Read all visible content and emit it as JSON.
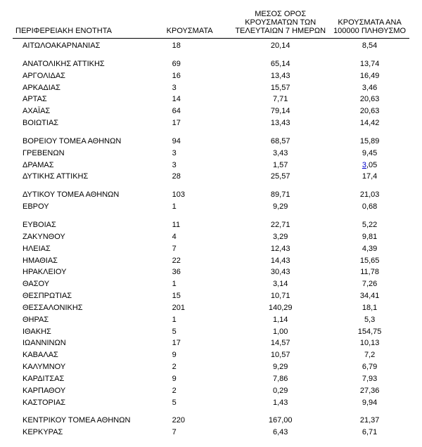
{
  "columns": {
    "region": "ΠΕΡΙΦΕΡΕΙΑΚΗ ΕΝΟΤΗΤΑ",
    "cases": "ΚΡΟΥΣΜΑΤΑ",
    "avg": "ΜΕΣΟΣ ΟΡΟΣ ΚΡΟΥΣΜΑΤΩΝ ΤΩΝ ΤΕΛΕΥΤΑΙΩΝ 7 ΗΜΕΡΩΝ",
    "per100k": "ΚΡΟΥΣΜΑΤΑ ΑΝΑ 100000 ΠΛΗΘΥΣΜΟ"
  },
  "rows": [
    {
      "region": "ΑΙΤΩΛΟΑΚΑΡΝΑΝΙΑΣ",
      "cases": "18",
      "avg": "20,14",
      "per100k": "8,54",
      "cls": "first"
    },
    {
      "region": "ΑΝΑΤΟΛΙΚΗΣ ΑΤΤΙΚΗΣ",
      "cases": "69",
      "avg": "65,14",
      "per100k": "13,74",
      "cls": "group"
    },
    {
      "region": "ΑΡΓΟΛΙΔΑΣ",
      "cases": "16",
      "avg": "13,43",
      "per100k": "16,49"
    },
    {
      "region": "ΑΡΚΑΔΙΑΣ",
      "cases": "3",
      "avg": "15,57",
      "per100k": "3,46"
    },
    {
      "region": "ΑΡΤΑΣ",
      "cases": "14",
      "avg": "7,71",
      "per100k": "20,63"
    },
    {
      "region": "ΑΧΑΪΑΣ",
      "cases": "64",
      "avg": "79,14",
      "per100k": "20,63"
    },
    {
      "region": "ΒΟΙΩΤΙΑΣ",
      "cases": "17",
      "avg": "13,43",
      "per100k": "14,42"
    },
    {
      "region": "ΒΟΡΕΙΟΥ ΤΟΜΕΑ ΑΘΗΝΩΝ",
      "cases": "94",
      "avg": "68,57",
      "per100k": "15,89",
      "cls": "group"
    },
    {
      "region": "ΓΡΕΒΕΝΩΝ",
      "cases": "3",
      "avg": "3,43",
      "per100k": "9,45"
    },
    {
      "region": "ΔΡΑΜΑΣ",
      "cases": "3",
      "avg": "1,57",
      "per100k": "3,05",
      "uline": true
    },
    {
      "region": "ΔΥΤΙΚΗΣ ΑΤΤΙΚΗΣ",
      "cases": "28",
      "avg": "25,57",
      "per100k": "17,4"
    },
    {
      "region": "ΔΥΤΙΚΟΥ ΤΟΜΕΑ ΑΘΗΝΩΝ",
      "cases": "103",
      "avg": "89,71",
      "per100k": "21,03",
      "cls": "group"
    },
    {
      "region": "ΕΒΡΟΥ",
      "cases": "1",
      "avg": "9,29",
      "per100k": "0,68"
    },
    {
      "region": "ΕΥΒΟΙΑΣ",
      "cases": "11",
      "avg": "22,71",
      "per100k": "5,22",
      "cls": "group"
    },
    {
      "region": "ΖΑΚΥΝΘΟΥ",
      "cases": "4",
      "avg": "3,29",
      "per100k": "9,81"
    },
    {
      "region": "ΗΛΕΙΑΣ",
      "cases": "7",
      "avg": "12,43",
      "per100k": "4,39"
    },
    {
      "region": "ΗΜΑΘΙΑΣ",
      "cases": "22",
      "avg": "14,43",
      "per100k": "15,65"
    },
    {
      "region": "ΗΡΑΚΛΕΙΟΥ",
      "cases": "36",
      "avg": "30,43",
      "per100k": "11,78"
    },
    {
      "region": "ΘΑΣΟΥ",
      "cases": "1",
      "avg": "3,14",
      "per100k": "7,26"
    },
    {
      "region": "ΘΕΣΠΡΩΤΙΑΣ",
      "cases": "15",
      "avg": "10,71",
      "per100k": "34,41"
    },
    {
      "region": "ΘΕΣΣΑΛΟΝΙΚΗΣ",
      "cases": "201",
      "avg": "140,29",
      "per100k": "18,1"
    },
    {
      "region": "ΘΗΡΑΣ",
      "cases": "1",
      "avg": "1,14",
      "per100k": "5,3"
    },
    {
      "region": "ΙΘΑΚΗΣ",
      "cases": "5",
      "avg": "1,00",
      "per100k": "154,75"
    },
    {
      "region": "ΙΩΑΝΝΙΝΩΝ",
      "cases": "17",
      "avg": "14,57",
      "per100k": "10,13"
    },
    {
      "region": "ΚΑΒΑΛΑΣ",
      "cases": "9",
      "avg": "10,57",
      "per100k": "7,2"
    },
    {
      "region": "ΚΑΛΥΜΝΟΥ",
      "cases": "2",
      "avg": "9,29",
      "per100k": "6,79"
    },
    {
      "region": "ΚΑΡΔΙΤΣΑΣ",
      "cases": "9",
      "avg": "7,86",
      "per100k": "7,93"
    },
    {
      "region": "ΚΑΡΠΑΘΟΥ",
      "cases": "2",
      "avg": "0,29",
      "per100k": "27,36"
    },
    {
      "region": "ΚΑΣΤΟΡΙΑΣ",
      "cases": "5",
      "avg": "1,43",
      "per100k": "9,94"
    },
    {
      "region": "ΚΕΝΤΡΙΚΟΥ ΤΟΜΕΑ ΑΘΗΝΩΝ",
      "cases": "220",
      "avg": "167,00",
      "per100k": "21,37",
      "cls": "group"
    },
    {
      "region": "ΚΕΡΚΥΡΑΣ",
      "cases": "7",
      "avg": "6,43",
      "per100k": "6,71"
    }
  ]
}
